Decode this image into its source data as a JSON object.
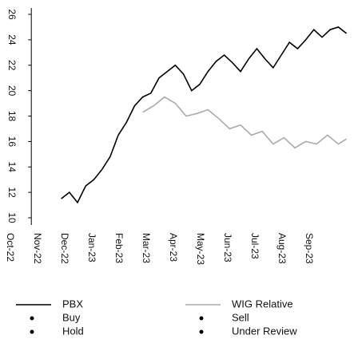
{
  "chart_data": {
    "type": "line",
    "xlim": [
      0.8,
      12.6
    ],
    "xticks": [
      {
        "value": 0,
        "label": "Oct-22"
      },
      {
        "value": 1,
        "label": "Nov-22"
      },
      {
        "value": 2,
        "label": "Dec-22"
      },
      {
        "value": 3,
        "label": "Jan-23"
      },
      {
        "value": 4,
        "label": "Feb-23"
      },
      {
        "value": 5,
        "label": "Mar-23"
      },
      {
        "value": 6,
        "label": "Apr-23"
      },
      {
        "value": 7,
        "label": "May-23"
      },
      {
        "value": 8,
        "label": "Jun-23"
      },
      {
        "value": 9,
        "label": "Jul-23"
      },
      {
        "value": 10,
        "label": "Aug-23"
      },
      {
        "value": 11,
        "label": "Sep-23"
      }
    ],
    "ylim": [
      10,
      26
    ],
    "yticks": [
      10,
      12,
      14,
      16,
      18,
      20,
      22,
      24,
      26
    ],
    "series": [
      {
        "name": "PBX",
        "color": "#000000",
        "x": [
          1.9,
          2.2,
          2.5,
          2.8,
          3.1,
          3.4,
          3.7,
          4.0,
          4.3,
          4.6,
          4.9,
          5.2,
          5.5,
          5.8,
          6.1,
          6.4,
          6.7,
          7.0,
          7.3,
          7.6,
          7.9,
          8.2,
          8.5,
          8.8,
          9.1,
          9.4,
          9.7,
          10.0,
          10.3,
          10.6,
          10.9,
          11.2,
          11.5,
          11.8,
          12.1,
          12.4
        ],
        "values": [
          11.5,
          12,
          11.2,
          12.5,
          13,
          13.8,
          14.8,
          16.5,
          17.5,
          18.8,
          19.5,
          19.8,
          21,
          21.5,
          22,
          21.3,
          20,
          20.5,
          21.5,
          22.3,
          22.8,
          22.2,
          21.5,
          22.5,
          23.3,
          22.5,
          21.8,
          22.8,
          23.8,
          23.3,
          24,
          24.8,
          24.2,
          24.8,
          25,
          24.5
        ]
      },
      {
        "name": "WIG Relative",
        "color": "#aaaaaa",
        "x": [
          4.9,
          5.3,
          5.7,
          6.1,
          6.5,
          6.9,
          7.3,
          7.7,
          8.1,
          8.5,
          8.9,
          9.3,
          9.7,
          10.1,
          10.5,
          10.9,
          11.3,
          11.7,
          12.1,
          12.4
        ],
        "values": [
          18.3,
          18.8,
          19.5,
          19,
          18,
          18.2,
          18.5,
          17.8,
          17,
          17.3,
          16.5,
          16.8,
          15.8,
          16.3,
          15.5,
          16,
          15.8,
          16.5,
          15.8,
          16.2
        ]
      }
    ],
    "markers": [
      {
        "name": "Buy",
        "color": "#000000"
      },
      {
        "name": "Sell",
        "color": "#000000"
      },
      {
        "name": "Hold",
        "color": "#000000"
      },
      {
        "name": "Under Review",
        "color": "#000000"
      }
    ]
  }
}
